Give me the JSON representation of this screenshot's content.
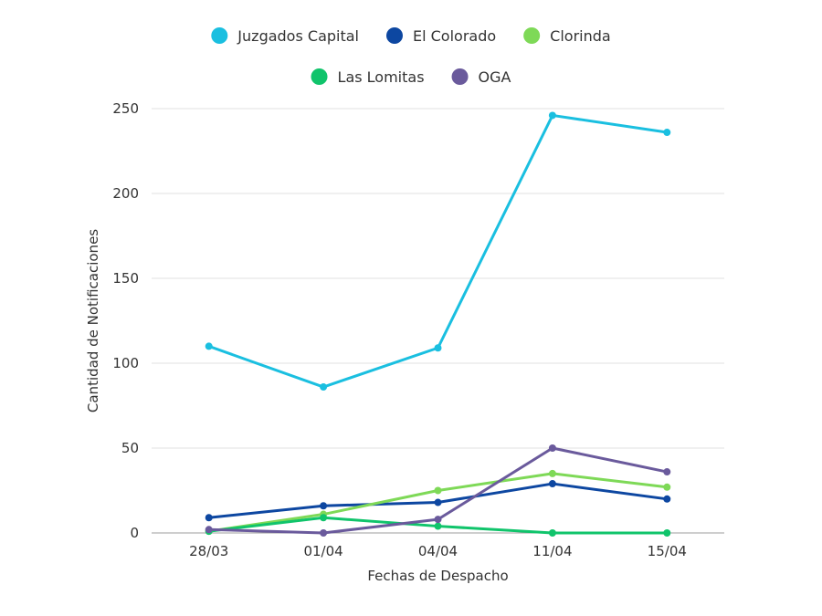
{
  "chart_data": {
    "type": "line",
    "title": "",
    "xlabel": "Fechas de Despacho",
    "ylabel": "Cantidad de Notificaciones",
    "categories": [
      "28/03",
      "01/04",
      "04/04",
      "11/04",
      "15/04"
    ],
    "ylim": [
      0,
      250
    ],
    "yticks": [
      0,
      50,
      100,
      150,
      200,
      250
    ],
    "grid": true,
    "legend_position": "top",
    "series": [
      {
        "name": "Juzgados Capital",
        "color": "#1ABFE0",
        "values": [
          110,
          86,
          109,
          246,
          236
        ]
      },
      {
        "name": "El Colorado",
        "color": "#0D47A1",
        "values": [
          9,
          16,
          18,
          29,
          20
        ]
      },
      {
        "name": "Clorinda",
        "color": "#7ED957",
        "values": [
          1,
          11,
          25,
          35,
          27
        ]
      },
      {
        "name": "Las Lomitas",
        "color": "#10C46B",
        "values": [
          1,
          9,
          4,
          0,
          0
        ]
      },
      {
        "name": "OGA",
        "color": "#6A5A9C",
        "values": [
          2,
          0,
          8,
          50,
          36
        ]
      }
    ]
  }
}
